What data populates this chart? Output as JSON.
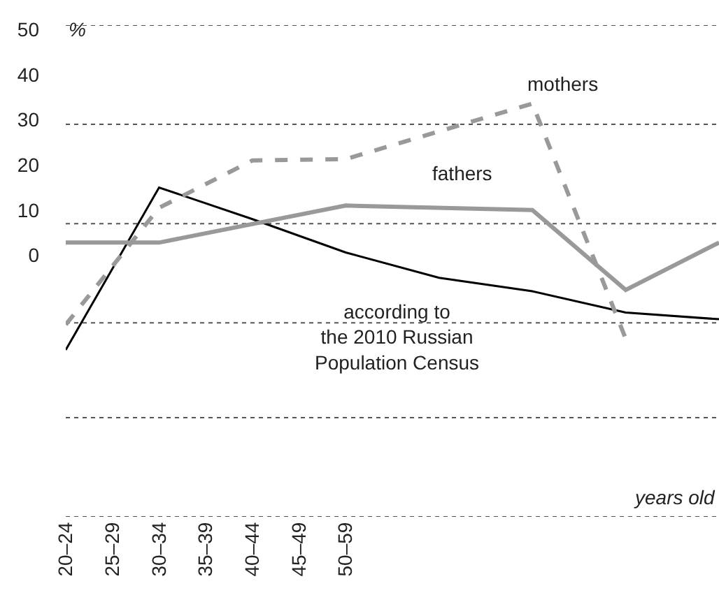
{
  "chart_data": {
    "type": "line",
    "xlabel": "years old",
    "ylabel": "%",
    "categories": [
      "20–24",
      "25–29",
      "30–34",
      "35–39",
      "40–44",
      "45–49",
      "50–59",
      null,
      null,
      null,
      null,
      null,
      null,
      null,
      null
    ],
    "ylim": [
      -58,
      51
    ],
    "yticks": [
      0,
      10,
      20,
      30,
      40,
      50,
      {
        "value": 51,
        "label": null
      },
      {
        "value": 29,
        "label": null
      },
      {
        "value": 7,
        "label": null
      },
      {
        "value": -15,
        "label": null
      },
      {
        "value": -36,
        "label": null
      },
      {
        "value": -58,
        "label": null
      }
    ],
    "grid": "y",
    "legend": false,
    "marker": "none",
    "series": [
      {
        "name": "according to\nthe 2010 Russian\nPopulation Census",
        "color": "#000000",
        "line_style": "solid",
        "values": [
          -21,
          null,
          15,
          null,
          8,
          null,
          0.6,
          null,
          -5,
          null,
          -8,
          null,
          -12.7,
          null,
          -14.2
        ]
      },
      {
        "name": "fathers",
        "color": "#999999",
        "line_style": "solid",
        "values": [
          2.8,
          null,
          2.8,
          null,
          null,
          null,
          11,
          null,
          null,
          null,
          10,
          null,
          -7.7,
          null,
          2.8
        ]
      },
      {
        "name": "mothers",
        "color": "#999999",
        "line_style": "dashed",
        "values": [
          -15.4,
          null,
          10.5,
          null,
          21,
          null,
          21.3,
          null,
          null,
          null,
          33.6,
          null,
          -18.5,
          null,
          null
        ]
      }
    ]
  }
}
